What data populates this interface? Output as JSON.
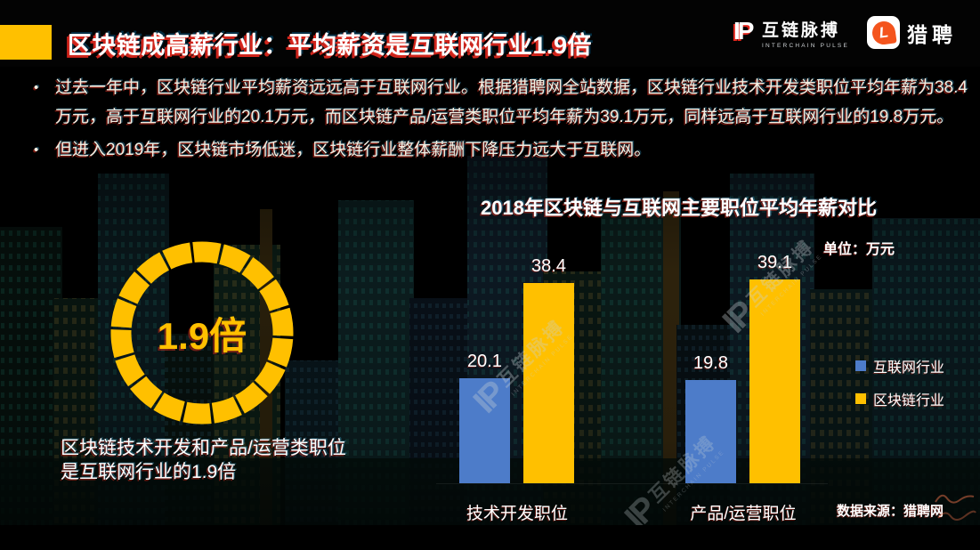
{
  "header": {
    "title": "区块链成高薪行业：平均薪资是互联网行业1.9倍",
    "logos": {
      "interchain": {
        "mark": "IP",
        "name": "互链脉搏",
        "subtitle": "INTERCHAIN PULSE"
      },
      "liepin": {
        "mark": "L",
        "name": "猎聘"
      }
    }
  },
  "bullets": [
    "过去一年中，区块链行业平均薪资远远高于互联网行业。根据猎聘网全站数据，区块链行业技术开发类职位平均年薪为38.4万元，高于互联网行业的20.1万元，而区块链产品/运营类职位平均年薪为39.1万元，同样远高于互联网行业的19.8万元。",
    "但进入2019年，区块链市场低迷，区块链行业整体薪酬下降压力远大于互联网。"
  ],
  "highlight": {
    "ring_label": "1.9倍",
    "caption": "区块链技术开发和产品/运营类职位是互联网行业的1.9倍"
  },
  "chart_data": {
    "type": "bar",
    "title": "2018年区块链与互联网主要职位平均年薪对比",
    "unit_label": "单位：万元",
    "categories": [
      "技术开发职位",
      "产品/运营职位"
    ],
    "series": [
      {
        "name": "互联网行业",
        "color": "#4D7CC9",
        "values": [
          20.1,
          19.8
        ]
      },
      {
        "name": "区块链行业",
        "color": "#FFC000",
        "values": [
          38.4,
          39.1
        ]
      }
    ],
    "ylim": [
      0,
      43
    ],
    "grid": false,
    "legend_position": "right",
    "value_labels": true
  },
  "footer": {
    "source": "数据来源：猎聘网"
  },
  "watermark": {
    "mark": "IP",
    "text": "互链脉搏",
    "subtext": "INTERCHAIN PULSE"
  },
  "colors": {
    "accent_yellow": "#FFC000",
    "series_blue": "#4D7CC9",
    "title_glitch_red": "#CF241B",
    "liepin_orange": "#F4541D",
    "background": "#000000"
  }
}
